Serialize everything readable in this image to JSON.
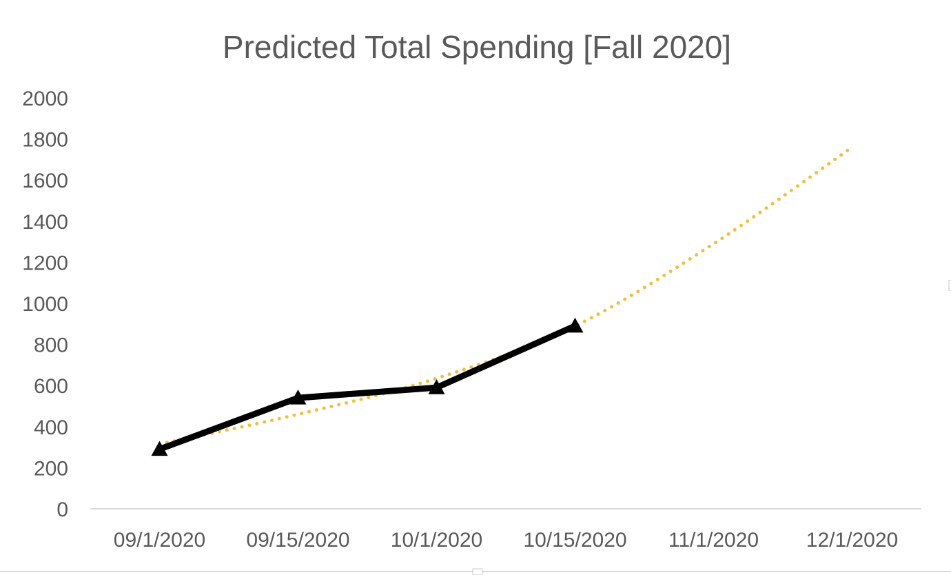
{
  "chart_data": {
    "type": "line",
    "title": "Predicted Total Spending [Fall 2020]",
    "categories": [
      "09/1/2020",
      "09/15/2020",
      "10/1/2020",
      "10/15/2020",
      "11/1/2020",
      "12/1/2020"
    ],
    "ylim": [
      0,
      2000
    ],
    "yticks": [
      0,
      200,
      400,
      600,
      800,
      1000,
      1200,
      1400,
      1600,
      1800,
      2000
    ],
    "grid": false,
    "legend": "none",
    "series": [
      {
        "values": [
          290,
          540,
          590,
          890,
          null,
          null
        ],
        "color": "#000000",
        "marker": "triangle",
        "style": "solid"
      }
    ],
    "trendline": {
      "type": "polynomial",
      "style": "dotted",
      "color": "#F2BF3A",
      "values": [
        315,
        460,
        635,
        890,
        1290,
        1760
      ]
    }
  }
}
